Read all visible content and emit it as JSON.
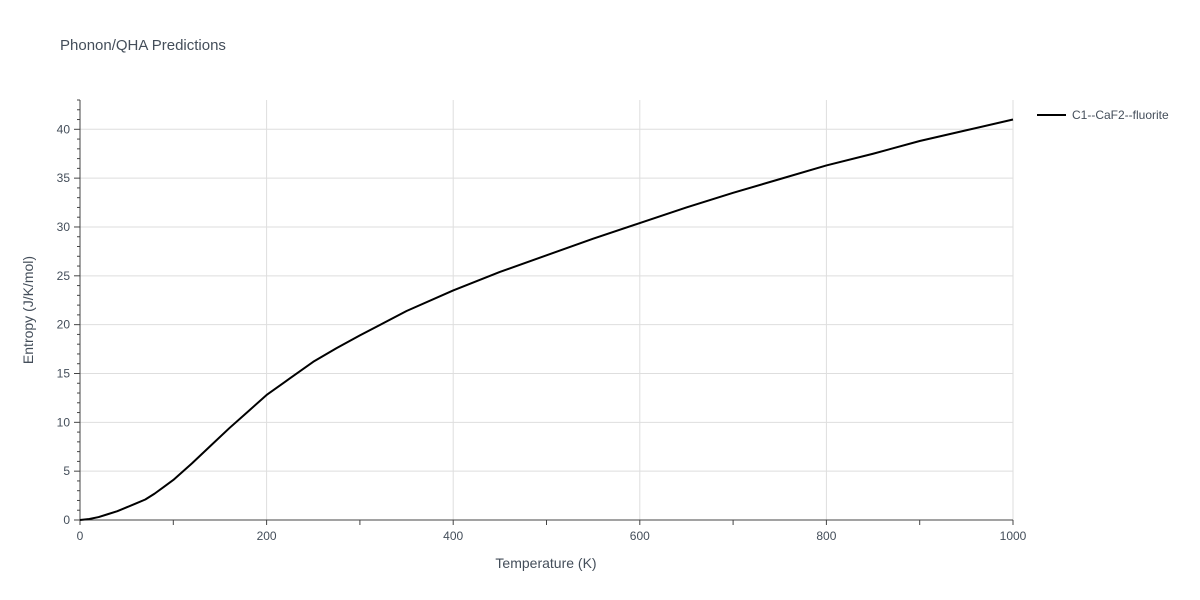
{
  "chart_data": {
    "type": "line",
    "title": "Phonon/QHA Predictions",
    "xlabel": "Temperature (K)",
    "ylabel": "Entropy (J/K/mol)",
    "xlim": [
      0,
      1000
    ],
    "ylim": [
      0,
      43
    ],
    "x_ticks": [
      0,
      200,
      400,
      600,
      800,
      1000
    ],
    "y_ticks": [
      0,
      5,
      10,
      15,
      20,
      25,
      30,
      35,
      40
    ],
    "grid": true,
    "legend_position": "top-right outside",
    "series": [
      {
        "name": "C1--CaF2--fluorite",
        "color": "#000000",
        "x": [
          0,
          10,
          20,
          30,
          40,
          50,
          60,
          70,
          80,
          90,
          100,
          120,
          140,
          160,
          180,
          200,
          225,
          250,
          275,
          300,
          350,
          400,
          450,
          500,
          550,
          600,
          650,
          700,
          750,
          800,
          850,
          900,
          950,
          1000
        ],
        "y": [
          0,
          0.1,
          0.3,
          0.6,
          0.9,
          1.3,
          1.7,
          2.1,
          2.7,
          3.4,
          4.1,
          5.8,
          7.6,
          9.4,
          11.1,
          12.8,
          14.5,
          16.2,
          17.6,
          18.9,
          21.4,
          23.5,
          25.4,
          27.1,
          28.8,
          30.4,
          32.0,
          33.5,
          34.9,
          36.3,
          37.5,
          38.8,
          39.9,
          41.0
        ]
      }
    ]
  }
}
